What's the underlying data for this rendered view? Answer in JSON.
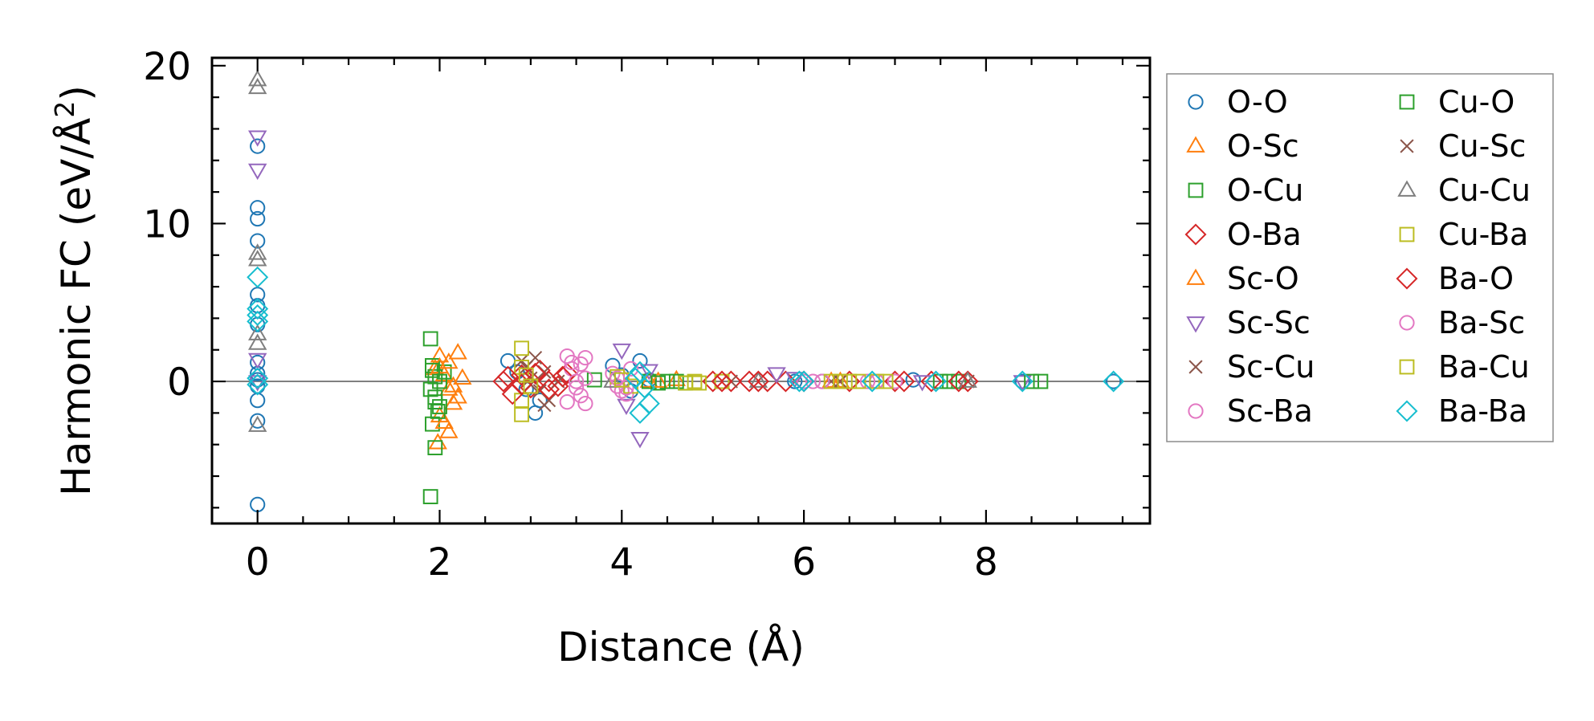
{
  "chart_data": {
    "type": "scatter",
    "title": "",
    "xlabel": "Distance (Å)",
    "ylabel_main": "Harmonic FC (eV/Å",
    "ylabel_sup": "2",
    "ylabel_close": ")",
    "xlim": [
      -0.5,
      9.8
    ],
    "ylim": [
      -9,
      20.5
    ],
    "xticks": [
      0,
      2,
      4,
      6,
      8
    ],
    "xtick_labels": [
      "0",
      "2",
      "4",
      "6",
      "8"
    ],
    "yticks": [
      0,
      10,
      20
    ],
    "ytick_labels": [
      "0",
      "10",
      "20"
    ],
    "x_minor_step": 0.5,
    "y_minor_step": 2,
    "zero_line": true,
    "legend_position": "right",
    "series": [
      {
        "name": "O-O",
        "marker": "circle",
        "color": "#1f77b4",
        "points": [
          [
            0,
            14.9
          ],
          [
            0,
            11.0
          ],
          [
            0,
            10.3
          ],
          [
            0,
            8.9
          ],
          [
            0,
            5.5
          ],
          [
            0,
            4.8
          ],
          [
            0,
            3.6
          ],
          [
            0,
            1.2
          ],
          [
            0,
            0.5
          ],
          [
            0,
            0.1
          ],
          [
            0,
            -0.3
          ],
          [
            0,
            -1.2
          ],
          [
            0,
            -2.5
          ],
          [
            0,
            -7.8
          ],
          [
            2.75,
            1.3
          ],
          [
            2.85,
            0.6
          ],
          [
            2.95,
            -0.5
          ],
          [
            3.05,
            -2.0
          ],
          [
            3.1,
            -1.2
          ],
          [
            3.9,
            1.0
          ],
          [
            4.0,
            0.4
          ],
          [
            4.1,
            -0.6
          ],
          [
            4.2,
            1.3
          ],
          [
            4.3,
            0.1
          ],
          [
            5.9,
            0.0
          ],
          [
            6.2,
            0.0
          ],
          [
            6.8,
            0.0
          ],
          [
            7.2,
            0.1
          ],
          [
            8.4,
            0.0
          ],
          [
            9.4,
            0.0
          ]
        ]
      },
      {
        "name": "O-Sc",
        "marker": "triangle-up",
        "color": "#ff7f0e",
        "points": [
          [
            1.95,
            0.8
          ],
          [
            2.0,
            1.6
          ],
          [
            2.05,
            0.4
          ],
          [
            2.1,
            -0.5
          ],
          [
            2.15,
            -1.4
          ],
          [
            2.2,
            1.8
          ],
          [
            2.25,
            0.2
          ],
          [
            2.0,
            -2.2
          ],
          [
            2.1,
            -3.2
          ],
          [
            1.98,
            -3.9
          ],
          [
            4.3,
            0.0
          ],
          [
            4.6,
            0.1
          ],
          [
            6.3,
            0.0
          ]
        ]
      },
      {
        "name": "O-Cu",
        "marker": "square",
        "color": "#2ca02c",
        "points": [
          [
            1.9,
            2.7
          ],
          [
            1.92,
            1.0
          ],
          [
            1.95,
            0.3
          ],
          [
            1.9,
            -0.5
          ],
          [
            1.95,
            -1.0
          ],
          [
            2.0,
            -1.6
          ],
          [
            1.92,
            -2.7
          ],
          [
            1.95,
            -4.2
          ],
          [
            1.9,
            -7.3
          ],
          [
            2.05,
            0.6
          ],
          [
            3.7,
            0.1
          ],
          [
            4.3,
            0.0
          ],
          [
            4.5,
            0.0
          ],
          [
            4.7,
            -0.1
          ],
          [
            7.5,
            0.0
          ],
          [
            7.7,
            0.0
          ],
          [
            8.6,
            0.0
          ]
        ]
      },
      {
        "name": "O-Ba",
        "marker": "diamond",
        "color": "#d62728",
        "points": [
          [
            2.7,
            0.0
          ],
          [
            2.8,
            -0.8
          ],
          [
            2.9,
            0.4
          ],
          [
            3.0,
            -0.4
          ],
          [
            3.1,
            0.7
          ],
          [
            3.2,
            0.0
          ],
          [
            3.3,
            -0.3
          ],
          [
            3.4,
            0.5
          ],
          [
            5.0,
            0.0
          ],
          [
            5.2,
            0.0
          ],
          [
            5.4,
            0.0
          ],
          [
            5.6,
            0.0
          ],
          [
            5.8,
            0.0
          ],
          [
            6.5,
            0.0
          ],
          [
            7.0,
            0.0
          ],
          [
            7.4,
            0.0
          ],
          [
            7.8,
            0.0
          ]
        ]
      },
      {
        "name": "Sc-O",
        "marker": "triangle-up",
        "color": "#ff7f0e",
        "points": [
          [
            2.0,
            0.9
          ],
          [
            2.1,
            1.2
          ],
          [
            2.15,
            -0.3
          ],
          [
            2.2,
            -1.0
          ],
          [
            2.05,
            -2.6
          ],
          [
            4.4,
            0.0
          ],
          [
            6.4,
            0.0
          ]
        ]
      },
      {
        "name": "Sc-Sc",
        "marker": "triangle-down",
        "color": "#9467bd",
        "points": [
          [
            0,
            15.5
          ],
          [
            0,
            13.4
          ],
          [
            0,
            1.4
          ],
          [
            0,
            0.0
          ],
          [
            4.0,
            2.0
          ],
          [
            4.05,
            -1.5
          ],
          [
            4.2,
            -3.6
          ],
          [
            4.3,
            0.7
          ],
          [
            5.7,
            0.5
          ],
          [
            5.9,
            0.2
          ],
          [
            7.3,
            0.0
          ],
          [
            8.4,
            0.0
          ]
        ]
      },
      {
        "name": "Sc-Cu",
        "marker": "cross",
        "color": "#8c564b",
        "points": [
          [
            2.95,
            0.9
          ],
          [
            3.05,
            1.5
          ],
          [
            3.15,
            -1.5
          ],
          [
            3.0,
            0.2
          ],
          [
            3.1,
            -0.6
          ],
          [
            3.3,
            0.0
          ],
          [
            5.2,
            0.0
          ],
          [
            6.3,
            0.0
          ],
          [
            7.8,
            0.0
          ]
        ]
      },
      {
        "name": "Sc-Ba",
        "marker": "circle",
        "color": "#e377c2",
        "points": [
          [
            3.4,
            1.6
          ],
          [
            3.45,
            0.8
          ],
          [
            3.5,
            -0.4
          ],
          [
            3.4,
            -1.3
          ],
          [
            3.55,
            1.1
          ],
          [
            3.6,
            0.2
          ],
          [
            3.6,
            -1.4
          ],
          [
            3.9,
            0.5
          ],
          [
            3.95,
            -0.3
          ],
          [
            4.0,
            -0.6
          ],
          [
            4.1,
            0.8
          ],
          [
            4.05,
            -0.8
          ],
          [
            6.0,
            0.0
          ],
          [
            6.2,
            0.0
          ],
          [
            6.7,
            0.0
          ],
          [
            7.0,
            0.0
          ]
        ]
      },
      {
        "name": "Cu-O",
        "marker": "square",
        "color": "#2ca02c",
        "points": [
          [
            1.92,
            0.7
          ],
          [
            1.95,
            -1.3
          ],
          [
            1.98,
            -1.9
          ],
          [
            2.0,
            0.0
          ],
          [
            4.4,
            -0.1
          ],
          [
            4.6,
            0.0
          ],
          [
            7.6,
            0.0
          ],
          [
            8.5,
            0.0
          ]
        ]
      },
      {
        "name": "Cu-Sc",
        "marker": "cross",
        "color": "#8c564b",
        "points": [
          [
            2.9,
            1.3
          ],
          [
            3.0,
            -0.2
          ],
          [
            3.15,
            0.6
          ],
          [
            3.2,
            -1.2
          ],
          [
            6.4,
            0.0
          ]
        ]
      },
      {
        "name": "Cu-Cu",
        "marker": "triangle-up",
        "color": "#7f7f7f",
        "points": [
          [
            0,
            19.1
          ],
          [
            0,
            18.6
          ],
          [
            0,
            8.1
          ],
          [
            0,
            7.7
          ],
          [
            0,
            3.0
          ],
          [
            0,
            2.4
          ],
          [
            0,
            -2.8
          ],
          [
            3.9,
            0.0
          ],
          [
            5.5,
            0.0
          ],
          [
            7.8,
            0.0
          ]
        ]
      },
      {
        "name": "Cu-Ba",
        "marker": "square",
        "color": "#bcbd22",
        "points": [
          [
            2.9,
            2.1
          ],
          [
            2.9,
            0.9
          ],
          [
            2.9,
            -1.2
          ],
          [
            2.9,
            -2.1
          ],
          [
            3.95,
            0.3
          ],
          [
            4.1,
            -0.3
          ],
          [
            4.7,
            -0.1
          ],
          [
            4.85,
            -0.1
          ],
          [
            5.1,
            0.0
          ],
          [
            6.3,
            0.0
          ],
          [
            6.5,
            0.0
          ],
          [
            6.6,
            0.0
          ],
          [
            6.9,
            0.0
          ]
        ]
      },
      {
        "name": "Ba-O",
        "marker": "diamond",
        "color": "#d62728",
        "points": [
          [
            2.75,
            0.3
          ],
          [
            2.9,
            -0.2
          ],
          [
            3.05,
            0.5
          ],
          [
            3.2,
            -0.5
          ],
          [
            3.35,
            0.3
          ],
          [
            5.1,
            0.0
          ],
          [
            5.5,
            0.0
          ],
          [
            6.0,
            0.0
          ],
          [
            7.1,
            0.0
          ],
          [
            7.7,
            0.0
          ]
        ]
      },
      {
        "name": "Ba-Sc",
        "marker": "circle",
        "color": "#e377c2",
        "points": [
          [
            3.45,
            1.2
          ],
          [
            3.5,
            0.0
          ],
          [
            3.55,
            -0.9
          ],
          [
            3.6,
            1.5
          ],
          [
            3.95,
            0.2
          ],
          [
            4.05,
            -0.4
          ],
          [
            6.1,
            0.0
          ],
          [
            6.8,
            0.0
          ]
        ]
      },
      {
        "name": "Ba-Cu",
        "marker": "square",
        "color": "#bcbd22",
        "points": [
          [
            2.95,
            0.4
          ],
          [
            3.0,
            -0.3
          ],
          [
            4.0,
            0.1
          ],
          [
            4.8,
            0.0
          ],
          [
            6.4,
            0.0
          ],
          [
            6.8,
            0.0
          ]
        ]
      },
      {
        "name": "Ba-Ba",
        "marker": "diamond",
        "color": "#17becf",
        "points": [
          [
            0,
            6.6
          ],
          [
            0,
            4.6
          ],
          [
            0,
            4.2
          ],
          [
            0,
            3.8
          ],
          [
            0,
            0.2
          ],
          [
            0,
            -0.2
          ],
          [
            4.2,
            0.6
          ],
          [
            4.25,
            -0.4
          ],
          [
            4.3,
            -1.4
          ],
          [
            4.2,
            -2.0
          ],
          [
            4.15,
            0.2
          ],
          [
            5.95,
            0.0
          ],
          [
            6.0,
            0.0
          ],
          [
            6.75,
            0.0
          ],
          [
            7.45,
            0.0
          ],
          [
            8.4,
            0.0
          ],
          [
            9.4,
            0.0
          ]
        ]
      }
    ]
  }
}
